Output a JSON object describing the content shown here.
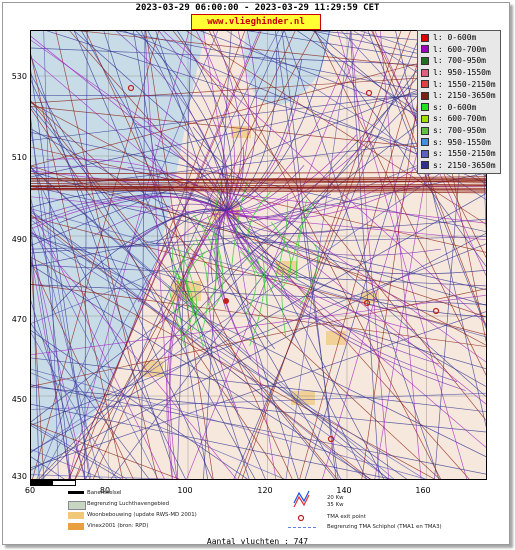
{
  "header": {
    "title": "2023-03-29 06:00:00 - 2023-03-29 11:29:59 CET",
    "url": "www.vlieghinder.nl"
  },
  "axes": {
    "y_ticks": [
      "530",
      "510",
      "490",
      "470",
      "450",
      "430"
    ],
    "x_ticks": [
      "60",
      "80",
      "100",
      "120",
      "140",
      "160"
    ]
  },
  "legend": {
    "items": [
      {
        "label": "l: 0-600m",
        "color": "#e00000"
      },
      {
        "label": "l: 600-700m",
        "color": "#a000c0"
      },
      {
        "label": "l: 700-950m",
        "color": "#207020"
      },
      {
        "label": "l: 950-1550m",
        "color": "#e06080"
      },
      {
        "label": "l: 1550-2150m",
        "color": "#e04040"
      },
      {
        "label": "l: 2150-3650m",
        "color": "#802010"
      },
      {
        "label": "s: 0-600m",
        "color": "#20e020"
      },
      {
        "label": "s: 600-700m",
        "color": "#a0e000"
      },
      {
        "label": "s: 700-950m",
        "color": "#60c040"
      },
      {
        "label": "s: 950-1550m",
        "color": "#4090e0"
      },
      {
        "label": "s: 1550-2150m",
        "color": "#6060c0"
      },
      {
        "label": "s: 2150-3650m",
        "color": "#303090"
      }
    ]
  },
  "map_legend": {
    "runway": "Banenstelsel",
    "airport_area": "Begrenzing Luchthavengebied",
    "housing": "Woonbebouwing (update RWS-MD 2001)",
    "vinex": "Vinex2001 (bron: RPD)",
    "wind_20": "20 Kw",
    "wind_35": "35 Kw",
    "tma_exit": "TMA exit point",
    "tma_border": "Begrenzing TMA Schiphol  (TMA1 en TMA3)"
  },
  "footer": {
    "flights": "Aantal vluchten : 747"
  },
  "colors": {
    "land": "#f6e8dc",
    "water": "#c8dce8",
    "track_dark": "#303090",
    "track_red": "#8b1a10",
    "track_purple": "#a020c0",
    "track_green": "#30d030"
  }
}
